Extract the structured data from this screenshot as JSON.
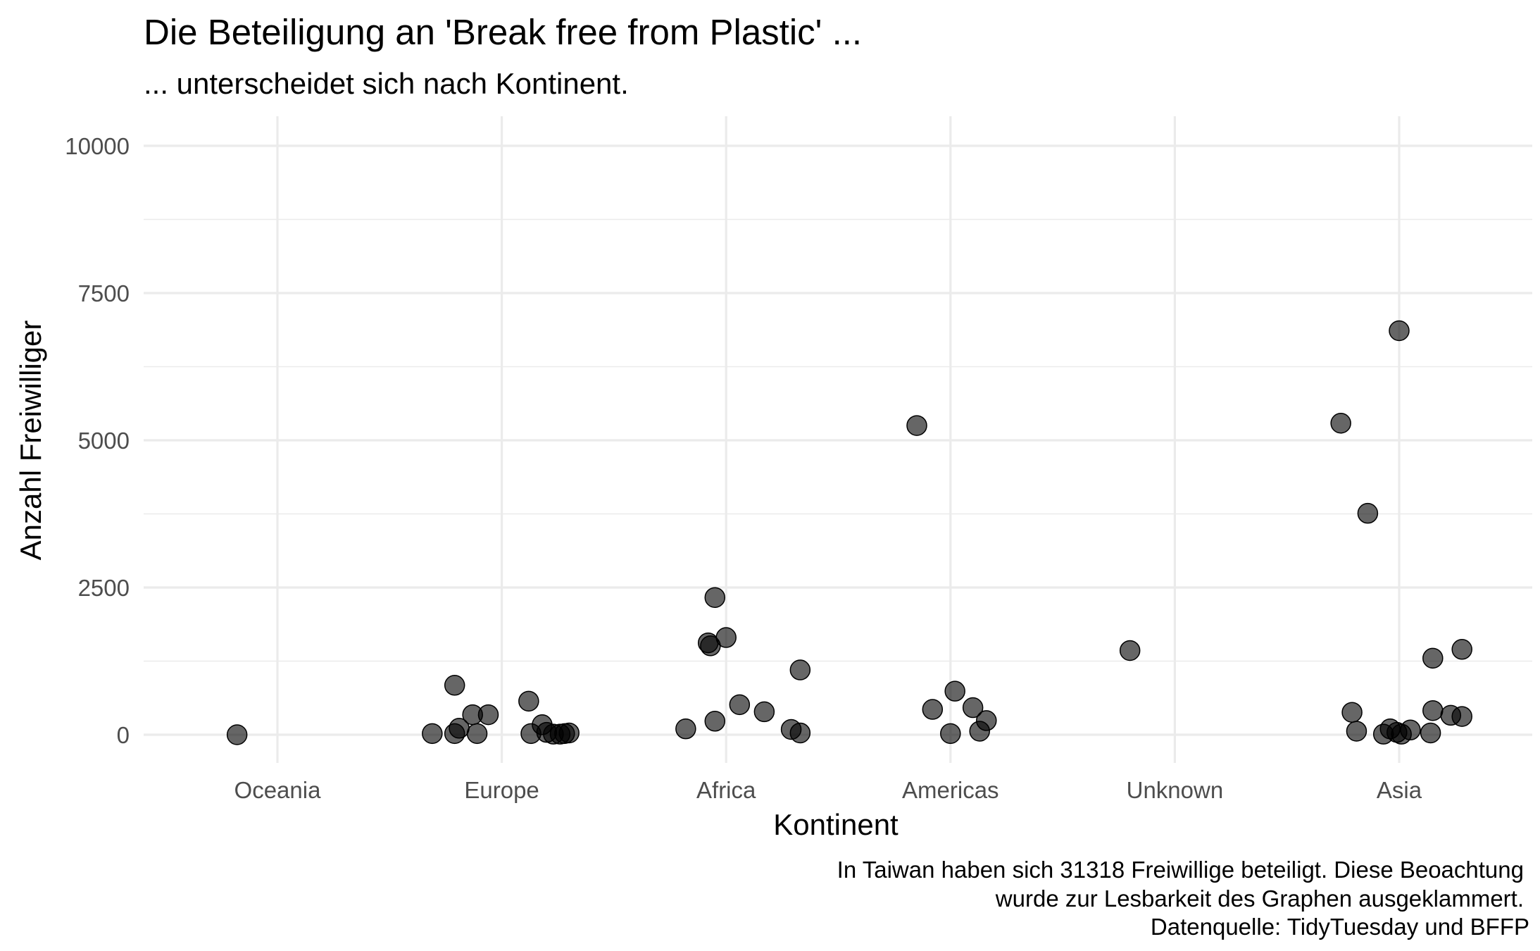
{
  "chart_data": {
    "type": "scatter",
    "title": "Die Beteiligung an 'Break free from Plastic' ...",
    "subtitle": "... unterscheidet sich nach Kontinent.",
    "xlabel": "Kontinent",
    "ylabel": "Anzahl Freiwilliger",
    "categories": [
      "Oceania",
      "Europe",
      "Africa",
      "Americas",
      "Unknown",
      "Asia"
    ],
    "ylim": [
      -500,
      10500
    ],
    "yticks": [
      0,
      2500,
      5000,
      7500,
      10000
    ],
    "caption": [
      "In Taiwan haben sich 31318 Freiwillige beteiligt. Diese Beoachtung",
      "wurde zur Lesbarkeit des Graphen ausgeklammert.",
      "Datenquelle: TidyTuesday und BFFP"
    ],
    "jitter": true,
    "grid": true,
    "point_color": "#000000",
    "point_alpha": 0.6,
    "points": [
      {
        "category": "Oceania",
        "x": 0.82,
        "y": 0
      },
      {
        "category": "Europe",
        "x": 1.69,
        "y": 20
      },
      {
        "category": "Europe",
        "x": 1.79,
        "y": 840
      },
      {
        "category": "Europe",
        "x": 1.79,
        "y": 20
      },
      {
        "category": "Europe",
        "x": 1.81,
        "y": 110
      },
      {
        "category": "Europe",
        "x": 1.87,
        "y": 340
      },
      {
        "category": "Europe",
        "x": 1.89,
        "y": 20
      },
      {
        "category": "Europe",
        "x": 1.94,
        "y": 340
      },
      {
        "category": "Europe",
        "x": 2.12,
        "y": 570
      },
      {
        "category": "Europe",
        "x": 2.13,
        "y": 20
      },
      {
        "category": "Europe",
        "x": 2.18,
        "y": 170
      },
      {
        "category": "Europe",
        "x": 2.2,
        "y": 40
      },
      {
        "category": "Europe",
        "x": 2.23,
        "y": 10
      },
      {
        "category": "Europe",
        "x": 2.26,
        "y": 10
      },
      {
        "category": "Europe",
        "x": 2.28,
        "y": 20
      },
      {
        "category": "Europe",
        "x": 2.3,
        "y": 30
      },
      {
        "category": "Africa",
        "x": 2.82,
        "y": 100
      },
      {
        "category": "Africa",
        "x": 2.92,
        "y": 1560
      },
      {
        "category": "Africa",
        "x": 2.93,
        "y": 1510
      },
      {
        "category": "Africa",
        "x": 2.95,
        "y": 2330
      },
      {
        "category": "Africa",
        "x": 2.95,
        "y": 230
      },
      {
        "category": "Africa",
        "x": 3.0,
        "y": 1650
      },
      {
        "category": "Africa",
        "x": 3.06,
        "y": 510
      },
      {
        "category": "Africa",
        "x": 3.17,
        "y": 390
      },
      {
        "category": "Africa",
        "x": 3.29,
        "y": 90
      },
      {
        "category": "Africa",
        "x": 3.33,
        "y": 1100
      },
      {
        "category": "Africa",
        "x": 3.33,
        "y": 30
      },
      {
        "category": "Americas",
        "x": 3.85,
        "y": 5250
      },
      {
        "category": "Americas",
        "x": 3.92,
        "y": 430
      },
      {
        "category": "Americas",
        "x": 4.0,
        "y": 20
      },
      {
        "category": "Americas",
        "x": 4.02,
        "y": 740
      },
      {
        "category": "Americas",
        "x": 4.1,
        "y": 460
      },
      {
        "category": "Americas",
        "x": 4.13,
        "y": 60
      },
      {
        "category": "Americas",
        "x": 4.16,
        "y": 240
      },
      {
        "category": "Unknown",
        "x": 4.8,
        "y": 1430
      },
      {
        "category": "Asia",
        "x": 5.74,
        "y": 5290
      },
      {
        "category": "Asia",
        "x": 5.86,
        "y": 3760
      },
      {
        "category": "Asia",
        "x": 5.79,
        "y": 380
      },
      {
        "category": "Asia",
        "x": 5.81,
        "y": 60
      },
      {
        "category": "Asia",
        "x": 5.93,
        "y": 10
      },
      {
        "category": "Asia",
        "x": 5.96,
        "y": 100
      },
      {
        "category": "Asia",
        "x": 5.99,
        "y": 40
      },
      {
        "category": "Asia",
        "x": 6.0,
        "y": 6860
      },
      {
        "category": "Asia",
        "x": 6.01,
        "y": 10
      },
      {
        "category": "Asia",
        "x": 6.05,
        "y": 80
      },
      {
        "category": "Asia",
        "x": 6.15,
        "y": 1300
      },
      {
        "category": "Asia",
        "x": 6.15,
        "y": 410
      },
      {
        "category": "Asia",
        "x": 6.14,
        "y": 30
      },
      {
        "category": "Asia",
        "x": 6.23,
        "y": 330
      },
      {
        "category": "Asia",
        "x": 6.28,
        "y": 1450
      },
      {
        "category": "Asia",
        "x": 6.28,
        "y": 310
      }
    ]
  }
}
